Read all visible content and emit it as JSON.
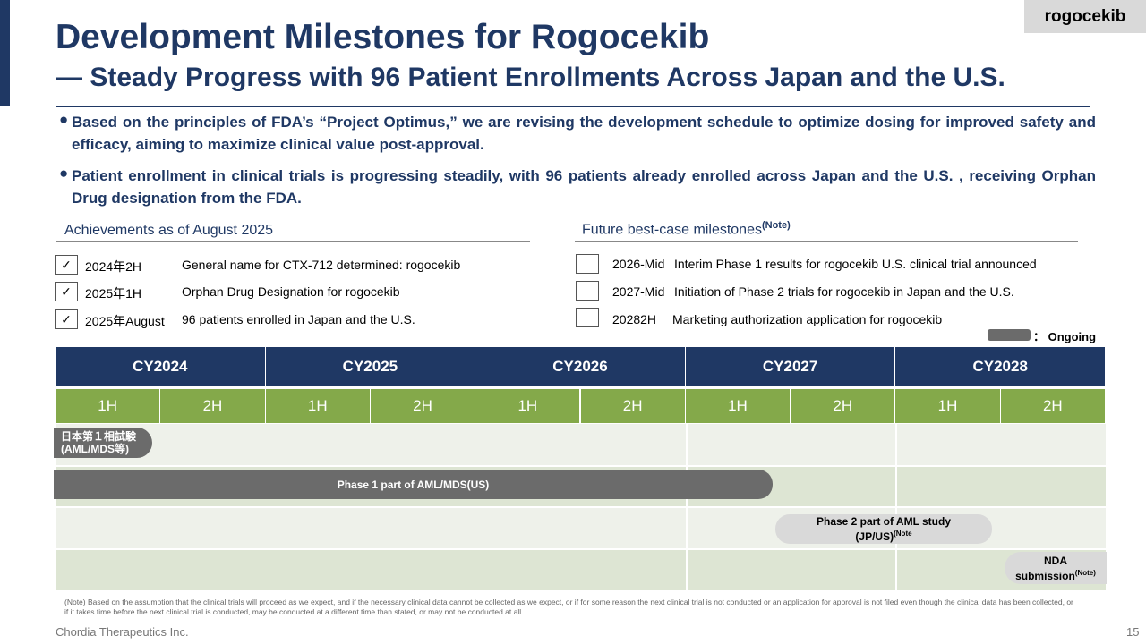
{
  "tag": "rogocekib",
  "header": {
    "title": "Development Milestones for Rogocekib",
    "subtitle": "— Steady Progress with 96 Patient Enrollments Across Japan and the U.S."
  },
  "bullets": [
    "Based on the principles of FDA’s “Project Optimus,” we are revising the development schedule to optimize dosing for improved safety and efficacy, aiming to maximize clinical value post-approval.",
    "Patient enrollment in clinical trials is progressing steadily, with 96 patients already enrolled across Japan and the U.S. , receiving Orphan Drug designation from the FDA."
  ],
  "achievements": {
    "heading": "Achievements as of August 2025",
    "items": [
      {
        "date": "2024年2H",
        "text": "General name for CTX-712 determined: rogocekib"
      },
      {
        "date": "2025年1H",
        "text": "Orphan Drug Designation for rogocekib"
      },
      {
        "date": "2025年August",
        "text": "96 patients enrolled in Japan and the U.S."
      }
    ]
  },
  "future": {
    "heading": "Future best-case milestones",
    "note": "(Note)",
    "items": [
      {
        "date": "2026-Mid",
        "text": "Interim Phase 1 results for rogocekib U.S. clinical trial announced"
      },
      {
        "date": "2027-Mid",
        "text": "Initiation of Phase 2 trials for rogocekib in Japan and the U.S."
      },
      {
        "date": "20282H",
        "text": "Marketing authorization application for rogocekib"
      }
    ]
  },
  "legend": "： Ongoing",
  "gantt": {
    "years": [
      "CY2024",
      "CY2025",
      "CY2026",
      "CY2027",
      "CY2028"
    ],
    "halves": [
      "1H",
      "2H",
      "1H",
      "2H",
      "1H",
      "2H",
      "1H",
      "2H",
      "1H",
      "2H"
    ],
    "bars": [
      {
        "lines": [
          "日本第１相試験",
          "(AML/MDS等)"
        ]
      },
      {
        "lines": [
          "Phase 1 part of AML/MDS(US)"
        ]
      },
      {
        "lines": [
          "Phase 2 part of AML study",
          "(JP/US)"
        ],
        "note": "(Note"
      },
      {
        "lines": [
          "NDA",
          "submission"
        ],
        "note": "(Note)"
      }
    ]
  },
  "footnote": "(Note) Based on the assumption that the clinical trials will proceed as we expect, and if the necessary clinical data cannot be collected as we expect, or if for some reason the next clinical trial is not conducted or an application for approval is not filed even though the clinical data has been collected, or if it takes time before the next clinical trial is conducted, may be conducted at a different time than stated, or may not be conducted at all.",
  "company": "Chordia Therapeutics Inc.",
  "page": "15"
}
